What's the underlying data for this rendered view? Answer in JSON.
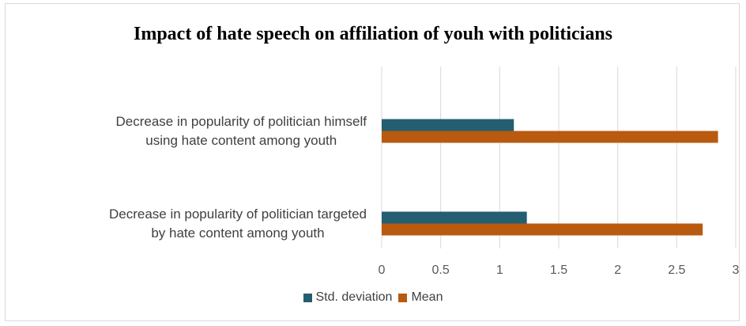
{
  "chart_data": {
    "type": "bar",
    "orientation": "horizontal",
    "title": "Impact of hate speech on affiliation of youh with politicians",
    "categories": [
      [
        "Decrease in popularity of politician himself",
        "using hate content among youth"
      ],
      [
        "Decrease in popularity of politician targeted",
        "by hate content among youth"
      ]
    ],
    "series": [
      {
        "name": "Std. deviation",
        "color": "#255e70",
        "values": [
          1.12,
          1.23
        ]
      },
      {
        "name": "Mean",
        "color": "#b85a0f",
        "values": [
          2.85,
          2.72
        ]
      }
    ],
    "xlim": [
      0,
      3
    ],
    "ticks": [
      "0",
      "0.5",
      "1",
      "1.5",
      "2",
      "2.5",
      "3"
    ],
    "tick_values": [
      0,
      0.5,
      1,
      1.5,
      2,
      2.5,
      3
    ],
    "grid": true,
    "legend_position": "bottom"
  }
}
